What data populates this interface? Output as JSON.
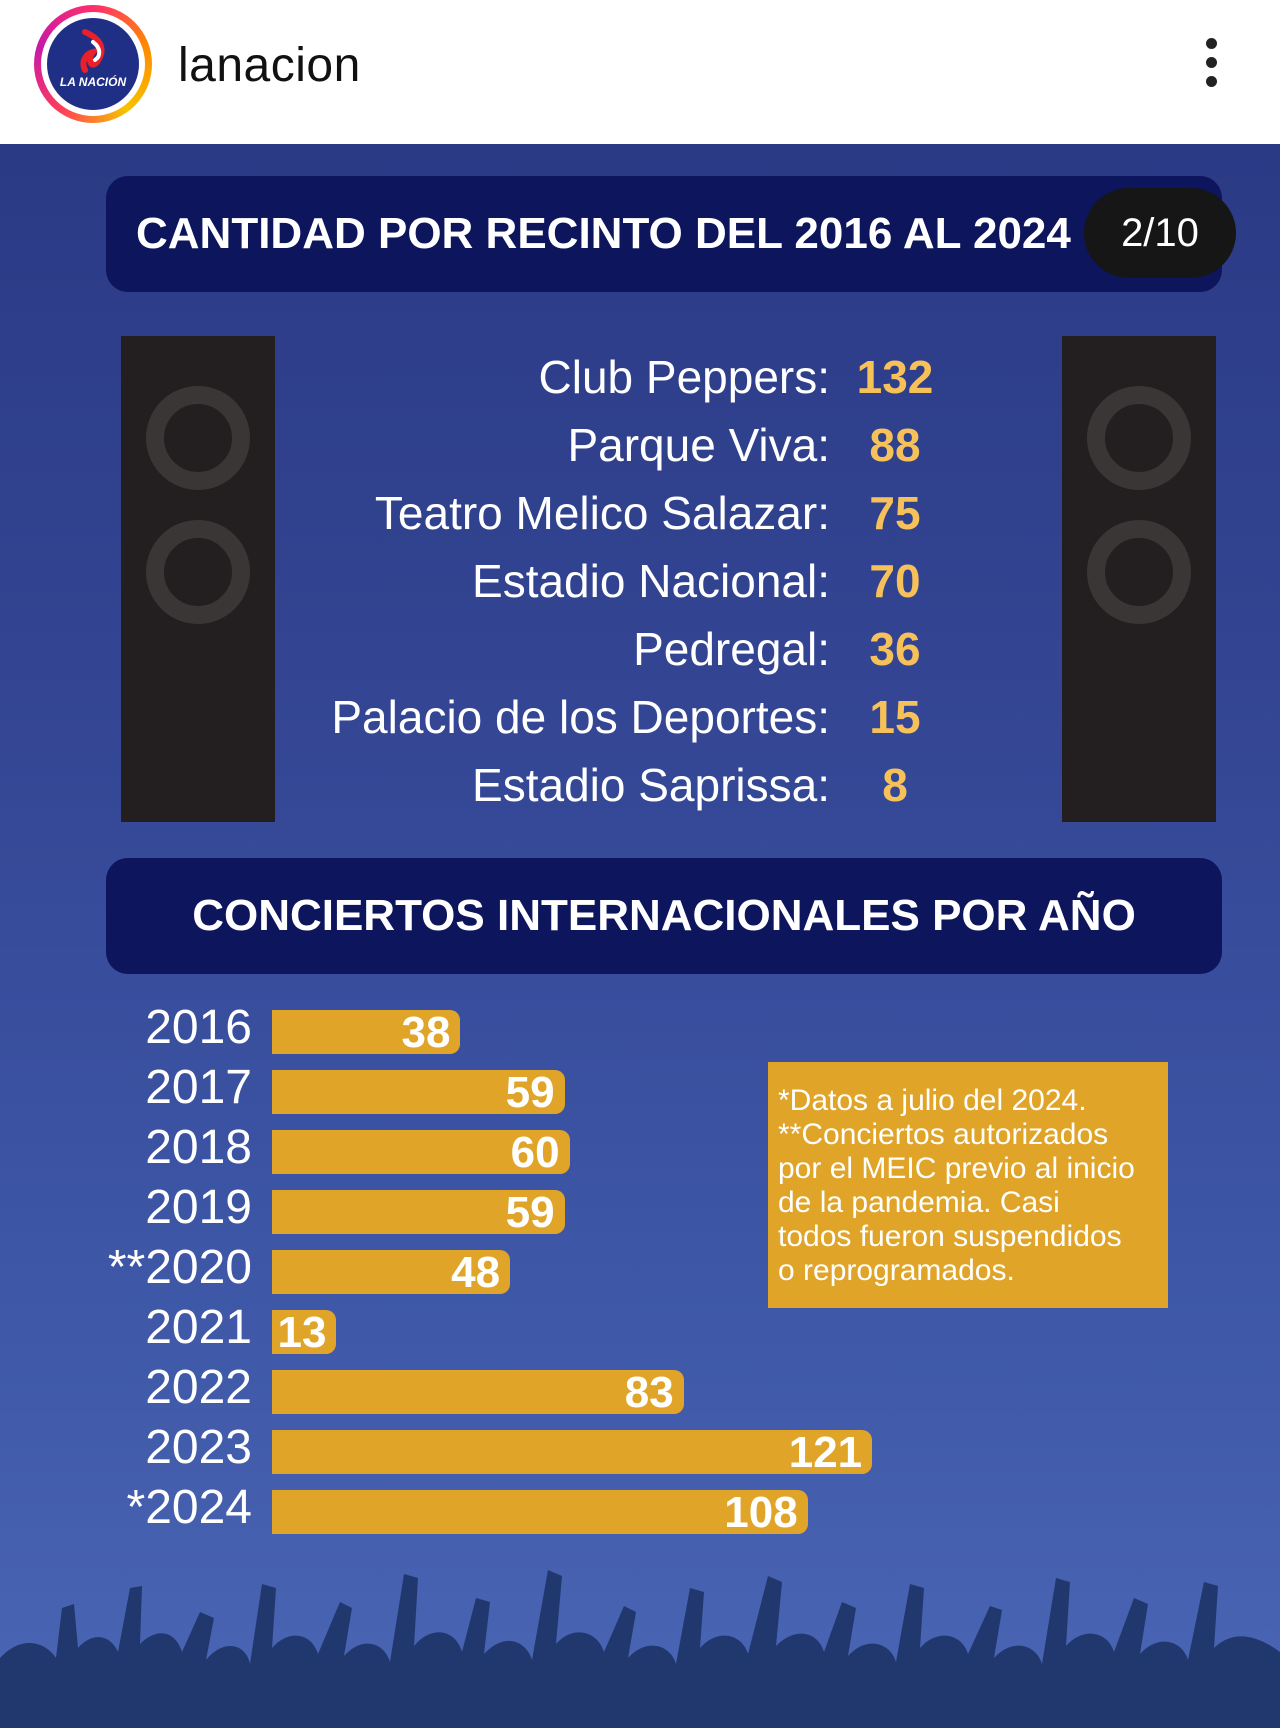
{
  "account": {
    "name": "lanacion",
    "logo_text": "LA NACIÓN"
  },
  "page_indicator": "2/10",
  "colors": {
    "background": "#334593",
    "header": "#0d155c",
    "accent": "#e0a428",
    "count": "#f7c15a"
  },
  "chart_data": [
    {
      "type": "table",
      "title": "CANTIDAD POR RECINTO DEL 2016 AL 2024",
      "rows": [
        {
          "label": "Club Peppers:",
          "value": 132
        },
        {
          "label": "Parque Viva:",
          "value": 88
        },
        {
          "label": "Teatro Melico Salazar:",
          "value": 75
        },
        {
          "label": "Estadio Nacional:",
          "value": 70
        },
        {
          "label": "Pedregal:",
          "value": 36
        },
        {
          "label": "Palacio de los Deportes:",
          "value": 15
        },
        {
          "label": "Estadio Saprissa:",
          "value": 8
        }
      ]
    },
    {
      "type": "bar",
      "orientation": "horizontal",
      "title": "CONCIERTOS INTERNACIONALES POR AÑO",
      "categories": [
        "2016",
        "2017",
        "2018",
        "2019",
        "**2020",
        "2021",
        "2022",
        "2023",
        "*2024"
      ],
      "values": [
        38,
        59,
        60,
        59,
        48,
        13,
        83,
        121,
        108
      ],
      "xlim": [
        0,
        125
      ]
    }
  ],
  "notes": {
    "line1": "*Datos a julio del 2024.",
    "line2": "**Conciertos autorizados",
    "line3": "por el MEIC previo al inicio",
    "line4": "de la pandemia. Casi",
    "line5": "todos fueron suspendidos",
    "line6": "o reprogramados."
  }
}
